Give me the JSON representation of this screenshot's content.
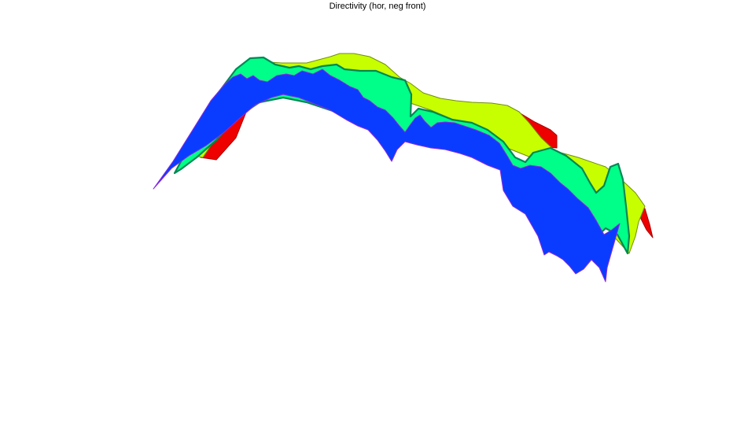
{
  "chart_data": {
    "type": "area",
    "title": "Directivity (hor, neg front)",
    "xlabel": "",
    "ylabel": "",
    "grid": false,
    "layers": [
      {
        "key": "red",
        "color": "#ee0000",
        "edge_color": "#aa0000"
      },
      {
        "key": "yellow",
        "color": "#c8ff00",
        "edge_color": "#6f8f00"
      },
      {
        "key": "green",
        "color": "#00ff88",
        "edge_color": "#008855"
      },
      {
        "key": "blue",
        "color": "#0a3cff",
        "edge_color": "#8a2be2"
      }
    ]
  }
}
